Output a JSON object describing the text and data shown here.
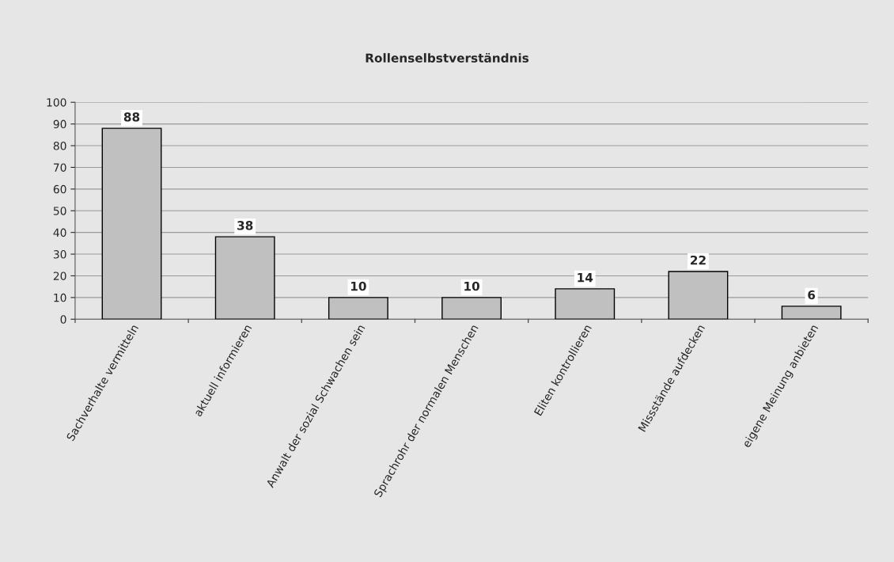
{
  "chart_data": {
    "type": "bar",
    "title": "Rollenselbstverständnis",
    "categories": [
      "Sachverhalte vermitteln",
      "aktuell informieren",
      "Anwalt der sozial Schwachen sein",
      "Sprachrohr der normalen Menschen",
      "Eliten kontrollieren",
      "Missstände aufdecken",
      "eigene Meinung anbieten"
    ],
    "values": [
      88,
      38,
      10,
      10,
      14,
      22,
      6
    ],
    "color": "#c0c0c0",
    "ylim": [
      0,
      100
    ],
    "yticks": [
      0,
      10,
      20,
      30,
      40,
      50,
      60,
      70,
      80,
      90,
      100
    ],
    "grid": "y",
    "data_labels": true
  }
}
